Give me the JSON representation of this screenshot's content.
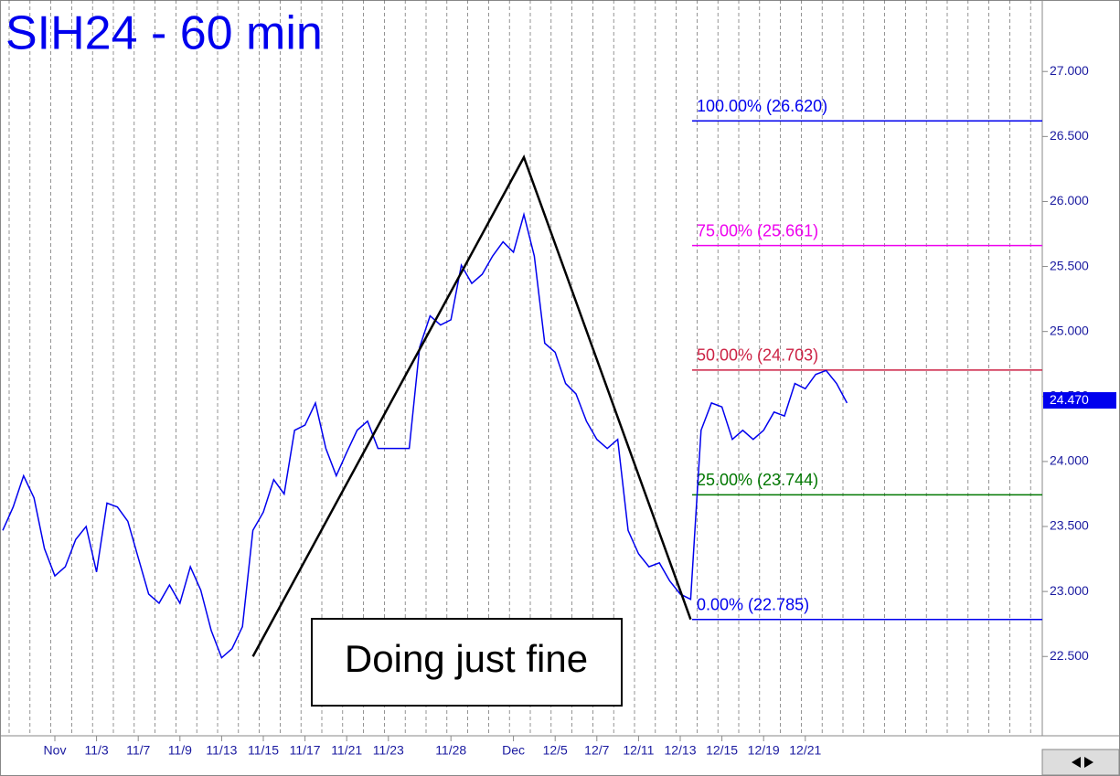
{
  "chart_data": {
    "type": "line",
    "title": "SIH24 - 60 min",
    "categories": [
      null,
      null,
      null,
      null,
      null,
      "Nov",
      null,
      null,
      null,
      "11/3",
      null,
      null,
      null,
      "11/7",
      null,
      null,
      null,
      "11/9",
      null,
      null,
      null,
      "11/13",
      null,
      null,
      null,
      "11/15",
      null,
      null,
      null,
      "11/17",
      null,
      null,
      null,
      "11/21",
      null,
      null,
      null,
      "11/23",
      null,
      null,
      null,
      null,
      null,
      "11/28",
      null,
      null,
      null,
      null,
      null,
      "Dec",
      null,
      null,
      null,
      "12/5",
      null,
      null,
      null,
      "12/7",
      null,
      null,
      null,
      "12/11",
      null,
      null,
      null,
      "12/13",
      null,
      null,
      null,
      "12/15",
      null,
      null,
      null,
      "12/19",
      null,
      null,
      null,
      "12/21",
      null,
      null,
      null,
      null
    ],
    "series": [
      {
        "color": "#0000ee",
        "values": [
          23.47,
          23.65,
          23.89,
          23.72,
          23.33,
          23.12,
          23.19,
          23.4,
          23.5,
          23.15,
          23.68,
          23.65,
          23.54,
          23.26,
          22.98,
          22.91,
          23.05,
          22.91,
          23.19,
          23.01,
          22.7,
          22.49,
          22.56,
          22.73,
          23.47,
          23.61,
          23.86,
          23.75,
          24.24,
          24.28,
          24.45,
          24.1,
          23.89,
          24.07,
          24.24,
          24.31,
          24.1,
          24.1,
          24.1,
          24.1,
          24.88,
          25.12,
          25.05,
          25.09,
          25.51,
          25.37,
          25.44,
          25.58,
          25.69,
          25.61,
          25.9,
          25.58,
          24.91,
          24.84,
          24.6,
          24.52,
          24.31,
          24.17,
          24.1,
          24.17,
          23.47,
          23.29,
          23.19,
          23.22,
          23.08,
          22.98,
          22.94,
          24.24,
          24.45,
          24.42,
          24.17,
          24.24,
          24.17,
          24.24,
          24.38,
          24.35,
          24.6,
          24.56,
          24.67,
          24.7,
          24.6,
          24.45
        ]
      }
    ],
    "ylim": [
      21.89,
      27.55
    ],
    "yticks": [
      {
        "value": 22.5,
        "label": "22.500"
      },
      {
        "value": 23,
        "label": "23.000"
      },
      {
        "value": 23.5,
        "label": "23.500"
      },
      {
        "value": 24,
        "label": "24.000"
      },
      {
        "value": 24.5,
        "label": "24.500"
      },
      {
        "value": 25,
        "label": "25.000"
      },
      {
        "value": 25.5,
        "label": "25.500"
      },
      {
        "value": 26,
        "label": "26.000"
      },
      {
        "value": 26.5,
        "label": "26.500"
      },
      {
        "value": 27,
        "label": "27.000"
      }
    ],
    "levels": [
      {
        "value": 26.62,
        "label": "100.00% (26.620)",
        "color": "#0000ee"
      },
      {
        "value": 25.661,
        "label": "75.00% (25.661)",
        "color": "#ee00ee"
      },
      {
        "value": 24.703,
        "label": "50.00% (24.703)",
        "color": "#cc2244"
      },
      {
        "value": 23.744,
        "label": "25.00% (23.744)",
        "color": "#007700"
      },
      {
        "value": 22.785,
        "label": "0.00% (22.785)",
        "color": "#0000ee"
      }
    ],
    "pattern": [
      {
        "index": 24,
        "value": 22.5
      },
      {
        "index": 50,
        "value": 26.34
      },
      {
        "index": 66,
        "value": 22.785
      }
    ],
    "last_value": {
      "value": 24.47,
      "label": "24.470"
    },
    "annotation": "Doing just fine"
  }
}
